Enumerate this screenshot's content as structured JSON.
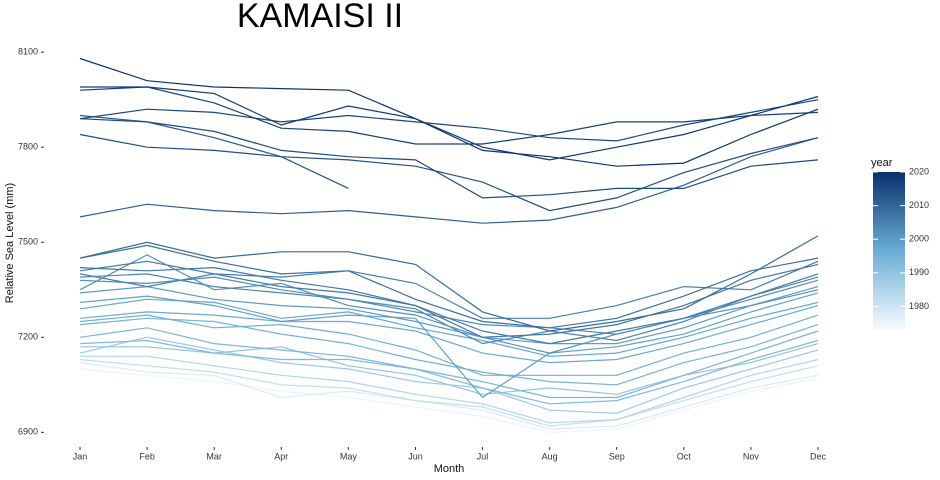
{
  "chart_data": {
    "type": "line",
    "title": "KAMAISI II",
    "x_label": "Month",
    "y_label": "Relative Sea Level (mm)",
    "categories": [
      "Jan",
      "Feb",
      "Mar",
      "Apr",
      "May",
      "Jun",
      "Jul",
      "Aug",
      "Sep",
      "Oct",
      "Nov",
      "Dec"
    ],
    "ylim": [
      6860,
      8170
    ],
    "yticks": [
      6900,
      7200,
      7500,
      7800,
      8100
    ],
    "colorbar": {
      "title": "year",
      "lim": [
        1973,
        2020
      ],
      "ticks": [
        1980,
        1990,
        2000,
        2010,
        2020
      ],
      "colors": [
        "#f7fbff",
        "#6baed6",
        "#08306b"
      ]
    },
    "series": [
      {
        "year": 1975,
        "values": [
          7100,
          7080,
          7060,
          7030,
          7010,
          6980,
          6950,
          6900,
          6910,
          6970,
          7030,
          7070
        ]
      },
      {
        "year": 1978,
        "values": [
          7120,
          7090,
          7080,
          7010,
          7030,
          7000,
          6970,
          6910,
          6920,
          6980,
          7040,
          7080
        ]
      },
      {
        "year": 1982,
        "values": [
          7130,
          7110,
          7090,
          7050,
          7040,
          7000,
          6980,
          6920,
          6940,
          7000,
          7060,
          7110
        ]
      },
      {
        "year": 1985,
        "values": [
          7140,
          7140,
          7110,
          7080,
          7060,
          7020,
          6990,
          6930,
          6940,
          7010,
          7080,
          7130
        ]
      },
      {
        "year": 1988,
        "values": [
          7150,
          7200,
          7160,
          7120,
          7100,
          7060,
          7040,
          6970,
          6960,
          7040,
          7100,
          7160
        ]
      },
      {
        "year": 1990,
        "values": [
          7170,
          7170,
          7150,
          7170,
          7110,
          7080,
          7020,
          7040,
          7020,
          7080,
          7120,
          7180
        ]
      },
      {
        "year": 1993,
        "values": [
          7180,
          7190,
          7150,
          7130,
          7130,
          7100,
          7040,
          6990,
          7000,
          7060,
          7130,
          7190
        ]
      },
      {
        "year": 1994,
        "values": [
          7200,
          7230,
          7180,
          7160,
          7140,
          7100,
          7060,
          7010,
          7010,
          7080,
          7150,
          7220
        ]
      },
      {
        "year": 1995,
        "values": [
          7240,
          7260,
          7250,
          7210,
          7180,
          7130,
          7090,
          7060,
          7050,
          7120,
          7170,
          7240
        ]
      },
      {
        "year": 1996,
        "values": [
          7250,
          7270,
          7230,
          7240,
          7210,
          7160,
          7080,
          7080,
          7080,
          7150,
          7200,
          7270
        ]
      },
      {
        "year": 1997,
        "values": [
          7260,
          7280,
          7270,
          7250,
          7250,
          7220,
          7150,
          7120,
          7130,
          7180,
          7240,
          7300
        ]
      },
      {
        "year": 1998,
        "values": [
          7290,
          7320,
          7310,
          7260,
          7280,
          7230,
          7190,
          7140,
          7150,
          7200,
          7260,
          7310
        ]
      },
      {
        "year": 1999,
        "values": [
          7310,
          7330,
          7300,
          7250,
          7270,
          7260,
          7010,
          7150,
          7170,
          7210,
          7280,
          7340
        ]
      },
      {
        "year": 2000,
        "values": [
          7340,
          7360,
          7320,
          7300,
          7290,
          7250,
          7200,
          7180,
          7180,
          7230,
          7300,
          7360
        ]
      },
      {
        "year": 2002,
        "values": [
          7350,
          7460,
          7350,
          7370,
          7300,
          7270,
          7200,
          7150,
          7210,
          7260,
          7300,
          7350
        ]
      },
      {
        "year": 2003,
        "values": [
          7380,
          7370,
          7390,
          7350,
          7320,
          7280,
          7240,
          7230,
          7210,
          7260,
          7320,
          7380
        ]
      },
      {
        "year": 2004,
        "values": [
          7390,
          7400,
          7360,
          7340,
          7320,
          7290,
          7180,
          7220,
          7190,
          7250,
          7330,
          7390
        ]
      },
      {
        "year": 2005,
        "values": [
          7400,
          7360,
          7400,
          7390,
          7410,
          7370,
          7260,
          7260,
          7300,
          7360,
          7350,
          7440
        ]
      },
      {
        "year": 2006,
        "values": [
          7410,
          7440,
          7400,
          7360,
          7340,
          7300,
          7220,
          7180,
          7220,
          7260,
          7330,
          7400
        ]
      },
      {
        "year": 2007,
        "values": [
          7420,
          7410,
          7420,
          7380,
          7350,
          7300,
          7200,
          7210,
          7240,
          7300,
          7380,
          7430
        ]
      },
      {
        "year": 2008,
        "values": [
          7450,
          7490,
          7440,
          7400,
          7410,
          7320,
          7250,
          7230,
          7260,
          7330,
          7410,
          7450
        ]
      },
      {
        "year": 2009,
        "values": [
          7450,
          7500,
          7450,
          7470,
          7470,
          7430,
          7280,
          7220,
          7250,
          7290,
          7400,
          7520
        ]
      },
      {
        "year": 2011,
        "values": [
          7580,
          7620,
          7600,
          7590,
          7600,
          7580,
          7560,
          7570,
          7610,
          7680,
          7770,
          7830
        ]
      },
      {
        "year": 2013,
        "values": [
          7900,
          7880,
          7830,
          7770,
          7670,
          null,
          null,
          null,
          null,
          null,
          null,
          null
        ]
      },
      {
        "year": 2014,
        "values": [
          7840,
          7800,
          7790,
          7770,
          7760,
          7740,
          7690,
          7600,
          7640,
          7720,
          7780,
          7830
        ]
      },
      {
        "year": 2015,
        "values": [
          7890,
          7880,
          7850,
          7790,
          7770,
          7760,
          7640,
          7650,
          7670,
          7670,
          7740,
          7760
        ]
      },
      {
        "year": 2016,
        "values": [
          7890,
          7920,
          7910,
          7880,
          7900,
          7880,
          7860,
          7830,
          7820,
          7870,
          7910,
          7950
        ]
      },
      {
        "year": 2017,
        "values": [
          7980,
          7990,
          7940,
          7860,
          7850,
          7810,
          7810,
          7840,
          7880,
          7880,
          7900,
          7910
        ]
      },
      {
        "year": 2018,
        "values": [
          7990,
          7990,
          7970,
          7870,
          7930,
          7890,
          7800,
          7760,
          7800,
          7840,
          7900,
          7960
        ]
      },
      {
        "year": 2019,
        "values": [
          8080,
          8010,
          7990,
          7985,
          7980,
          7890,
          7790,
          7770,
          7740,
          7750,
          7840,
          7920
        ]
      }
    ]
  }
}
